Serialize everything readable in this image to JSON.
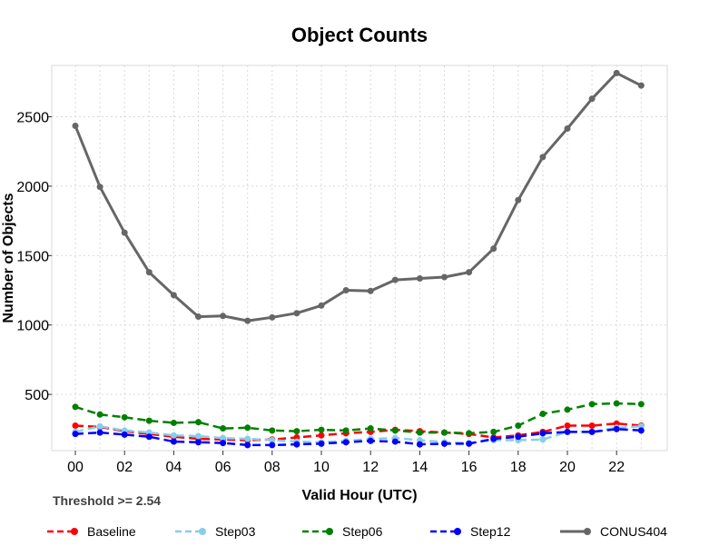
{
  "chart_data": {
    "type": "line",
    "title": "Object Counts",
    "xlabel": "Valid Hour (UTC)",
    "ylabel": "Number of Objects",
    "annotation": "Threshold >= 2.54",
    "categories": [
      "00",
      "01",
      "02",
      "03",
      "04",
      "05",
      "06",
      "07",
      "08",
      "09",
      "10",
      "11",
      "12",
      "13",
      "14",
      "15",
      "16",
      "17",
      "18",
      "19",
      "20",
      "21",
      "22",
      "23"
    ],
    "x_tick_labels": [
      "00",
      "02",
      "04",
      "06",
      "08",
      "10",
      "12",
      "14",
      "16",
      "18",
      "20",
      "22"
    ],
    "y_ticks": [
      500,
      1000,
      1500,
      2000,
      2500
    ],
    "ylim": [
      95,
      2870
    ],
    "grid": true,
    "legend_position": "bottom",
    "series": [
      {
        "name": "Baseline",
        "color": "#ff0000",
        "style": "dashed",
        "values": [
          275,
          265,
          235,
          215,
          195,
          180,
          175,
          170,
          175,
          190,
          205,
          220,
          230,
          245,
          235,
          225,
          215,
          190,
          205,
          230,
          275,
          275,
          290,
          275
        ]
      },
      {
        "name": "Step03",
        "color": "#87ceeb",
        "style": "dashed",
        "values": [
          230,
          270,
          240,
          225,
          205,
          200,
          185,
          180,
          170,
          160,
          155,
          165,
          180,
          185,
          170,
          155,
          150,
          170,
          170,
          175,
          230,
          230,
          260,
          270
        ]
      },
      {
        "name": "Step06",
        "color": "#008000",
        "style": "dashed",
        "values": [
          410,
          355,
          335,
          310,
          295,
          300,
          255,
          260,
          240,
          235,
          245,
          240,
          255,
          240,
          225,
          225,
          220,
          230,
          275,
          360,
          390,
          430,
          435,
          430
        ]
      },
      {
        "name": "Step12",
        "color": "#0000ff",
        "style": "dashed",
        "values": [
          215,
          225,
          210,
          195,
          160,
          155,
          150,
          135,
          135,
          140,
          145,
          155,
          165,
          160,
          140,
          145,
          145,
          180,
          195,
          220,
          230,
          230,
          250,
          240
        ]
      },
      {
        "name": "CONUS404",
        "color": "#666666",
        "style": "solid",
        "values": [
          2435,
          1995,
          1665,
          1380,
          1215,
          1060,
          1065,
          1030,
          1055,
          1085,
          1140,
          1250,
          1245,
          1325,
          1335,
          1345,
          1380,
          1550,
          1900,
          2210,
          2415,
          2630,
          2815,
          2725
        ]
      }
    ]
  }
}
